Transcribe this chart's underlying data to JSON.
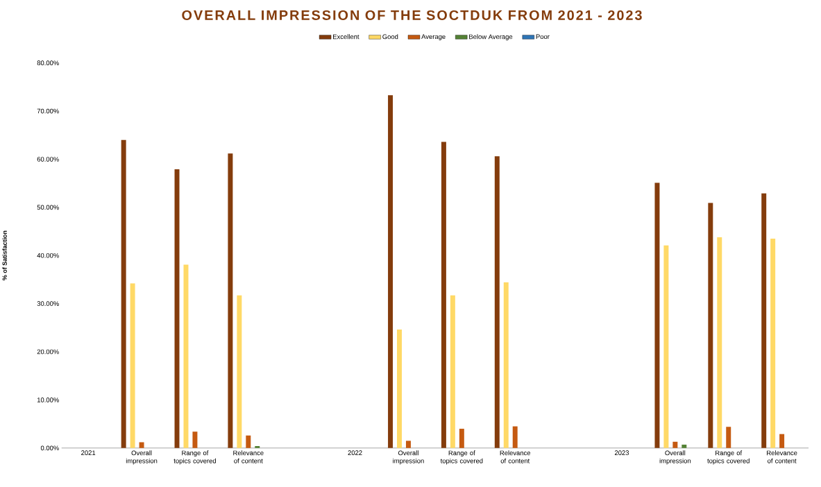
{
  "chart_data": {
    "type": "bar",
    "title": "OVERALL IMPRESSION OF THE SOCTDUK FROM 2021 - 2023",
    "ylabel": "% of  Satisfaction",
    "categories": [
      "2021",
      "Overall impression",
      "Range of topics covered",
      "Relevance of content",
      null,
      "2022",
      "Overall impression",
      "Range of topics covered",
      "Relevance of content",
      null,
      "2023",
      "Overall impression",
      "Range of topics covered",
      "Relevance of content"
    ],
    "series": [
      {
        "name": "Excellent",
        "color": "#843c0c",
        "values": [
          null,
          64.0,
          57.9,
          61.2,
          null,
          null,
          73.3,
          63.6,
          60.6,
          null,
          null,
          55.1,
          50.9,
          52.9
        ]
      },
      {
        "name": "Good",
        "color": "#ffd966",
        "values": [
          null,
          34.2,
          38.1,
          31.7,
          null,
          null,
          24.6,
          31.7,
          34.4,
          null,
          null,
          42.1,
          43.8,
          43.5
        ]
      },
      {
        "name": "Average",
        "color": "#c55a11",
        "values": [
          null,
          1.2,
          3.4,
          2.6,
          null,
          null,
          1.5,
          4.0,
          4.5,
          null,
          null,
          1.3,
          4.4,
          2.9
        ]
      },
      {
        "name": "Below Average",
        "color": "#548235",
        "values": [
          null,
          0,
          0,
          0.4,
          null,
          null,
          0,
          0,
          0,
          null,
          null,
          0.7,
          0,
          0
        ]
      },
      {
        "name": "Poor",
        "color": "#2e75b6",
        "values": [
          null,
          0,
          0,
          0,
          null,
          null,
          0,
          0,
          0,
          null,
          null,
          0,
          0,
          0
        ]
      }
    ],
    "ylim": [
      0,
      80
    ],
    "yticks": [
      {
        "value": 0,
        "label": "0.00%"
      },
      {
        "value": 10,
        "label": "10.00%"
      },
      {
        "value": 20,
        "label": "20.00%"
      },
      {
        "value": 30,
        "label": "30.00%"
      },
      {
        "value": 40,
        "label": "40.00%"
      },
      {
        "value": 50,
        "label": "50.00%"
      },
      {
        "value": 60,
        "label": "60.00%"
      },
      {
        "value": 70,
        "label": "70.00%"
      },
      {
        "value": 80,
        "label": "80.00%"
      }
    ],
    "grid": false,
    "legend": "top"
  }
}
